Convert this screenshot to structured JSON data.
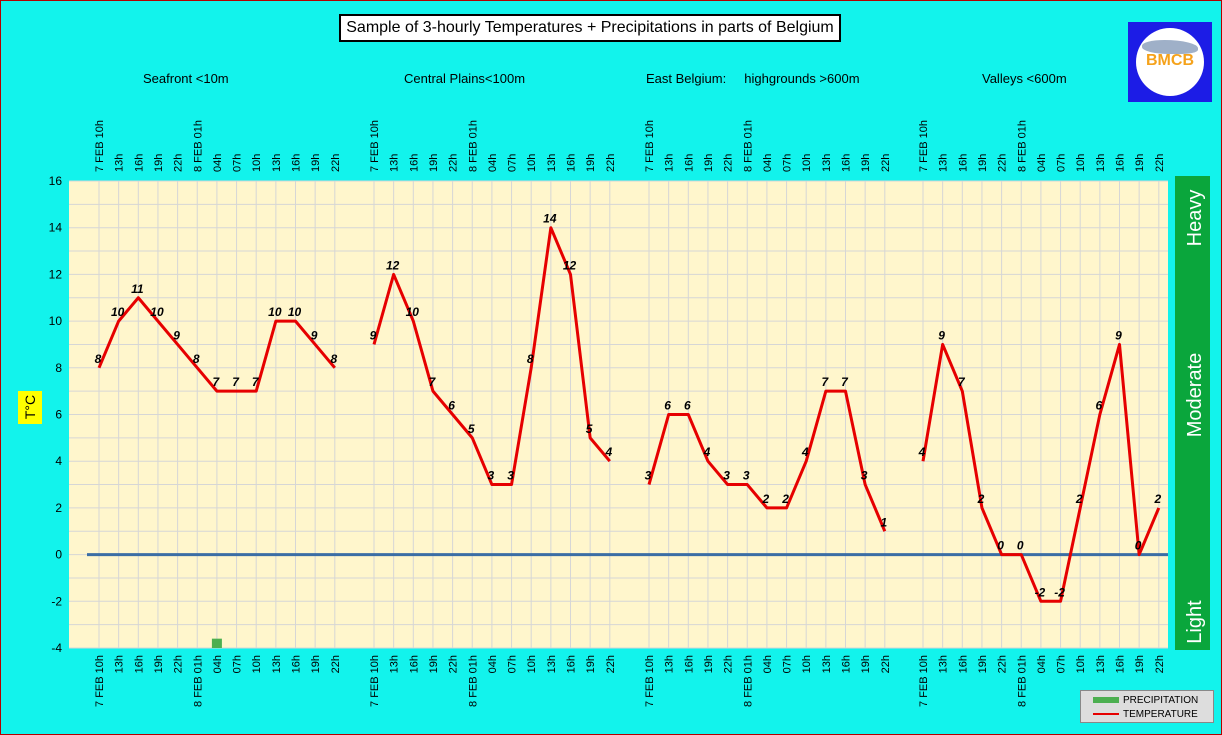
{
  "title": "Sample of 3-hourly Temperatures + Precipitations in parts of Belgium",
  "regions": [
    "Seafront <10m",
    "Central Plains<100m",
    "East Belgium:     highgrounds >600m",
    "Valleys <600m"
  ],
  "ylabel": "T°C",
  "intensity_labels": [
    "Heavy",
    "Moderate",
    "Light"
  ],
  "legend": {
    "precipitation": "PRECIPITATION",
    "temperature": "TEMPERATURE"
  },
  "colors": {
    "background": "#12f3ec",
    "plot_bg": "#fff6cc",
    "temperature": "#e60000",
    "precipitation": "#4caf50",
    "intensity_bar": "#0aa63c",
    "zero_line": "#3b6ea5",
    "grid": "#d6d6d6"
  },
  "chart_data": {
    "type": "line",
    "ylim": [
      -4,
      16
    ],
    "yticks": [
      -4,
      -2,
      0,
      2,
      4,
      6,
      8,
      10,
      12,
      14,
      16
    ],
    "grid": true,
    "legend_position": "bottom-right",
    "time_labels": [
      "7 FEB 10h",
      "13h",
      "16h",
      "19h",
      "22h",
      "8 FEB 01h",
      "04h",
      "07h",
      "10h",
      "13h",
      "16h",
      "19h",
      "22h"
    ],
    "groups": [
      {
        "name": "Seafront <10m",
        "temperature": [
          8,
          10,
          11,
          10,
          9,
          8,
          7,
          7,
          7,
          10,
          10,
          9,
          8
        ],
        "precipitation": [
          null,
          null,
          null,
          null,
          null,
          null,
          -3.6,
          null,
          null,
          null,
          null,
          null,
          null
        ]
      },
      {
        "name": "Central Plains<100m",
        "temperature": [
          9,
          12,
          10,
          7,
          6,
          5,
          3,
          3,
          8,
          14,
          12,
          5,
          4
        ],
        "precipitation": [
          null,
          null,
          null,
          null,
          null,
          null,
          null,
          null,
          null,
          null,
          null,
          null,
          null
        ]
      },
      {
        "name": "East Belgium: highgrounds >600m",
        "temperature": [
          3,
          6,
          6,
          4,
          3,
          3,
          2,
          2,
          4,
          7,
          7,
          3,
          1
        ],
        "precipitation": [
          null,
          null,
          null,
          null,
          null,
          null,
          null,
          null,
          null,
          null,
          null,
          null,
          null
        ]
      },
      {
        "name": "Valleys <600m",
        "temperature": [
          4,
          9,
          7,
          2,
          0,
          0,
          -2,
          -2,
          2,
          6,
          9,
          0,
          2
        ],
        "precipitation": [
          null,
          null,
          null,
          null,
          null,
          null,
          null,
          null,
          null,
          null,
          null,
          null,
          null
        ]
      }
    ]
  }
}
